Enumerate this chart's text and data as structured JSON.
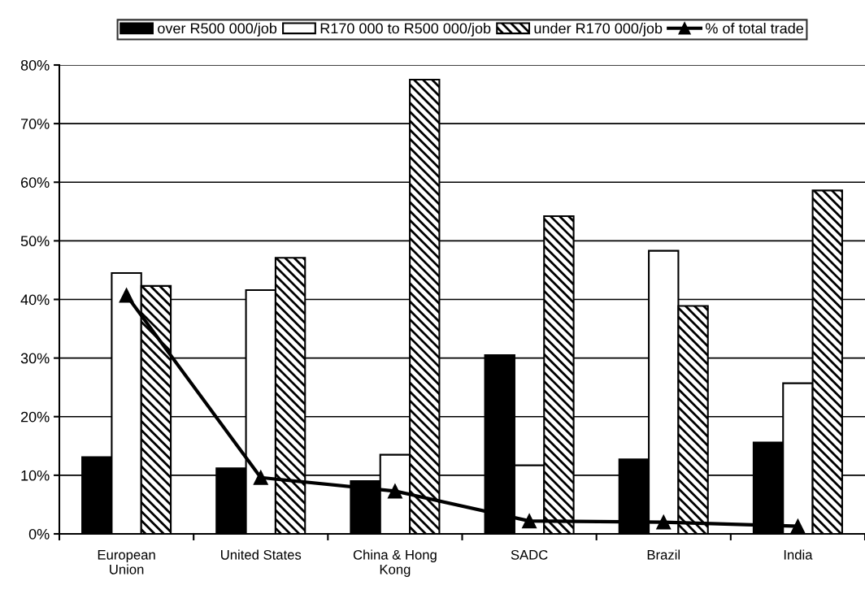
{
  "chart_data": {
    "type": "bar",
    "categories": [
      "European Union",
      "United States",
      "China & Hong Kong",
      "SADC",
      "Brazil",
      "India"
    ],
    "series": [
      {
        "name": "over R500 000/job",
        "color": "#000000",
        "values": [
          13.1,
          11.2,
          9.0,
          30.5,
          12.7,
          15.6
        ]
      },
      {
        "name": "R170 000 to R500 000/job",
        "color": "#ffffff",
        "values": [
          44.5,
          41.6,
          13.5,
          11.7,
          48.3,
          25.7
        ]
      },
      {
        "name": "under R170 000/job",
        "color": "#000000",
        "values": [
          42.3,
          47.1,
          77.5,
          54.2,
          38.9,
          58.6
        ]
      },
      {
        "name": "% of total trade",
        "type": "line",
        "color": "#000000",
        "marker": "triangle",
        "line_style": "solid",
        "values": [
          40.7,
          9.6,
          7.3,
          2.2,
          2.0,
          1.3
        ]
      }
    ],
    "ylim": [
      0,
      80
    ],
    "yticks": [
      {
        "value": 0,
        "label": "0%"
      },
      {
        "value": 10,
        "label": "10%"
      },
      {
        "value": 20,
        "label": "20%"
      },
      {
        "value": 30,
        "label": "30%"
      },
      {
        "value": 40,
        "label": "40%"
      },
      {
        "value": 50,
        "label": "50%"
      },
      {
        "value": 60,
        "label": "60%"
      },
      {
        "value": 70,
        "label": "70%"
      },
      {
        "value": 80,
        "label": "80%"
      }
    ],
    "grid": "y",
    "legend": "top"
  }
}
